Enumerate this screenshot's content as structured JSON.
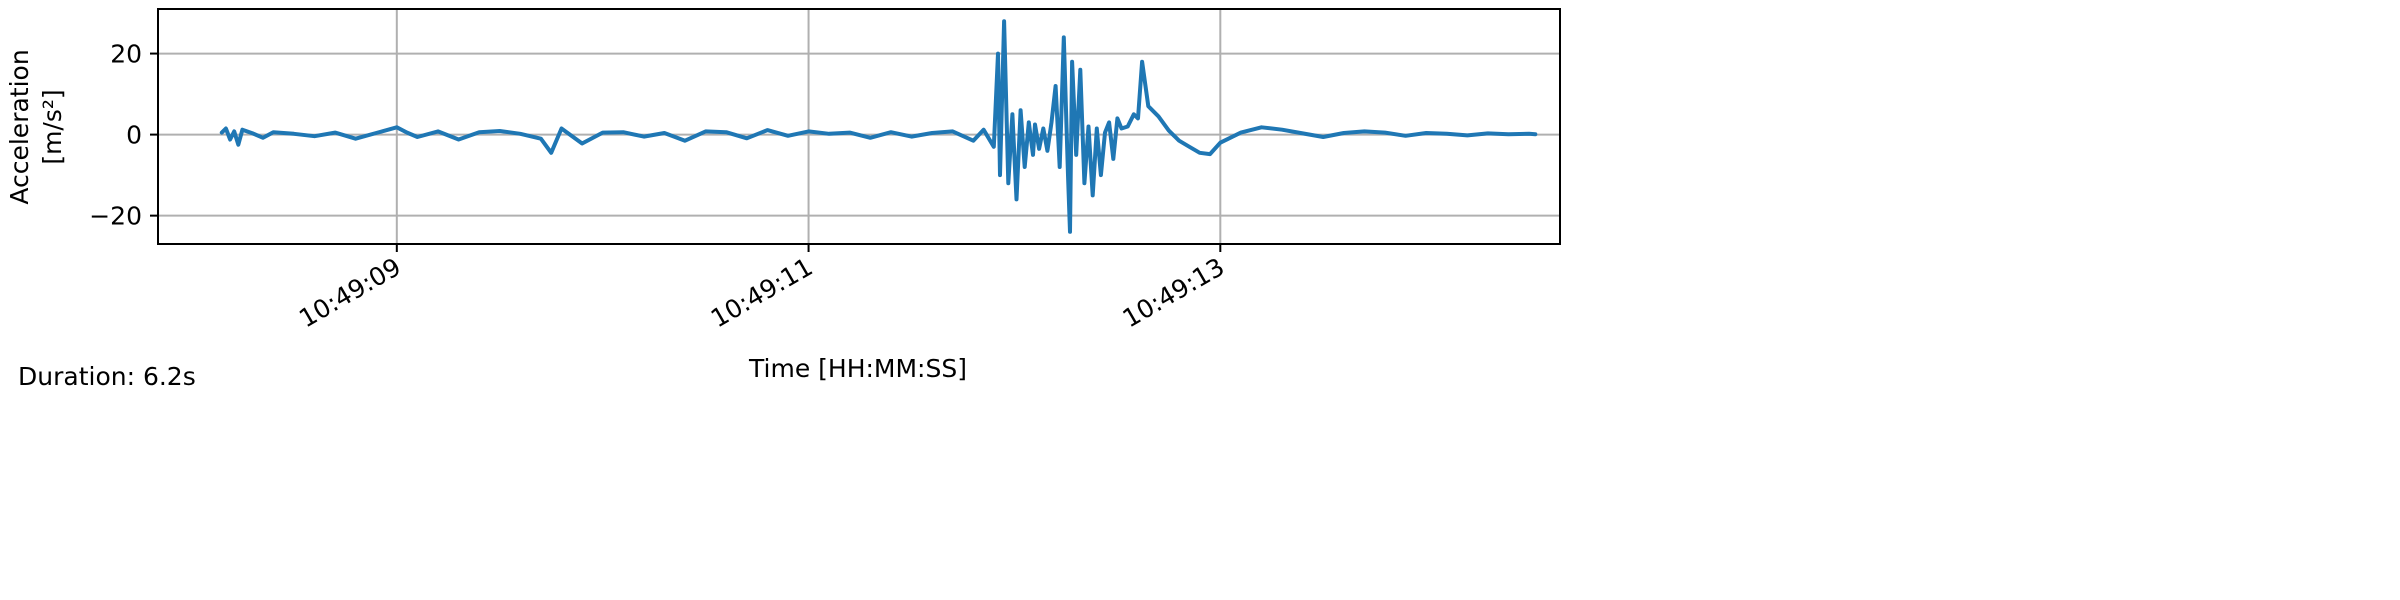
{
  "footer": {
    "duration_label": "Duration: 6.2s"
  },
  "chart_data": {
    "type": "line",
    "title": "",
    "xlabel": "Time [HH:MM:SS]",
    "ylabel_line1": "Acceleration",
    "ylabel_line2": "[m/s²]",
    "x_unit": "seconds since 10:49:00",
    "xlim": [
      7.84,
      14.65
    ],
    "ylim": [
      -27,
      31
    ],
    "x_ticks": [
      {
        "value": 9,
        "label": "10:49:09"
      },
      {
        "value": 11,
        "label": "10:49:11"
      },
      {
        "value": 13,
        "label": "10:49:13"
      }
    ],
    "y_ticks": [
      {
        "value": -20,
        "label": "−20"
      },
      {
        "value": 0,
        "label": "0"
      },
      {
        "value": 20,
        "label": "20"
      }
    ],
    "grid": true,
    "line_color": "#1f77b4",
    "series": [
      {
        "x": [
          8.15,
          8.17,
          8.19,
          8.21,
          8.23,
          8.25,
          8.3,
          8.35,
          8.4,
          8.5,
          8.6,
          8.7,
          8.8,
          8.9,
          9.0,
          9.05,
          9.1,
          9.2,
          9.3,
          9.4,
          9.5,
          9.6,
          9.7,
          9.75,
          9.8,
          9.9,
          10.0,
          10.1,
          10.2,
          10.3,
          10.4,
          10.5,
          10.6,
          10.7,
          10.8,
          10.9,
          11.0,
          11.1,
          11.2,
          11.3,
          11.4,
          11.5,
          11.6,
          11.7,
          11.8,
          11.85,
          11.9,
          11.92,
          11.93,
          11.95,
          11.97,
          11.99,
          12.01,
          12.03,
          12.05,
          12.07,
          12.09,
          12.1,
          12.12,
          12.14,
          12.16,
          12.18,
          12.2,
          12.22,
          12.24,
          12.26,
          12.27,
          12.28,
          12.3,
          12.32,
          12.34,
          12.36,
          12.38,
          12.4,
          12.42,
          12.44,
          12.46,
          12.48,
          12.5,
          12.52,
          12.55,
          12.58,
          12.6,
          12.62,
          12.65,
          12.7,
          12.75,
          12.8,
          12.85,
          12.9,
          12.95,
          13.0,
          13.1,
          13.2,
          13.3,
          13.4,
          13.5,
          13.6,
          13.7,
          13.8,
          13.9,
          14.0,
          14.1,
          14.2,
          14.3,
          14.4,
          14.5,
          14.53
        ],
        "y": [
          0.5,
          1.5,
          -1.2,
          0.8,
          -2.5,
          1.2,
          0.3,
          -0.8,
          0.6,
          0.2,
          -0.4,
          0.5,
          -1.0,
          0.4,
          1.8,
          0.5,
          -0.6,
          0.8,
          -1.2,
          0.6,
          0.9,
          0.2,
          -1.0,
          -4.5,
          1.5,
          -2.2,
          0.5,
          0.6,
          -0.5,
          0.4,
          -1.5,
          0.8,
          0.6,
          -0.9,
          1.1,
          -0.3,
          0.8,
          0.2,
          0.5,
          -0.8,
          0.6,
          -0.5,
          0.4,
          0.8,
          -1.5,
          1.2,
          -3.0,
          20.0,
          -10.0,
          28.0,
          -12.0,
          5.0,
          -16.0,
          6.0,
          -8.0,
          3.0,
          -5.0,
          2.5,
          -3.5,
          1.5,
          -4.0,
          3.0,
          12.0,
          -8.0,
          24.0,
          -10.0,
          -24.0,
          18.0,
          -5.0,
          16.0,
          -12.0,
          2.0,
          -15.0,
          1.5,
          -10.0,
          0.5,
          3.0,
          -6.0,
          4.0,
          1.5,
          2.0,
          5.0,
          4.0,
          18.0,
          7.0,
          4.5,
          1.0,
          -1.5,
          -3.0,
          -4.5,
          -4.8,
          -2.0,
          0.5,
          1.8,
          1.2,
          0.3,
          -0.6,
          0.4,
          0.8,
          0.5,
          -0.3,
          0.4,
          0.2,
          -0.2,
          0.3,
          0.1,
          0.2,
          0.1
        ]
      }
    ]
  }
}
